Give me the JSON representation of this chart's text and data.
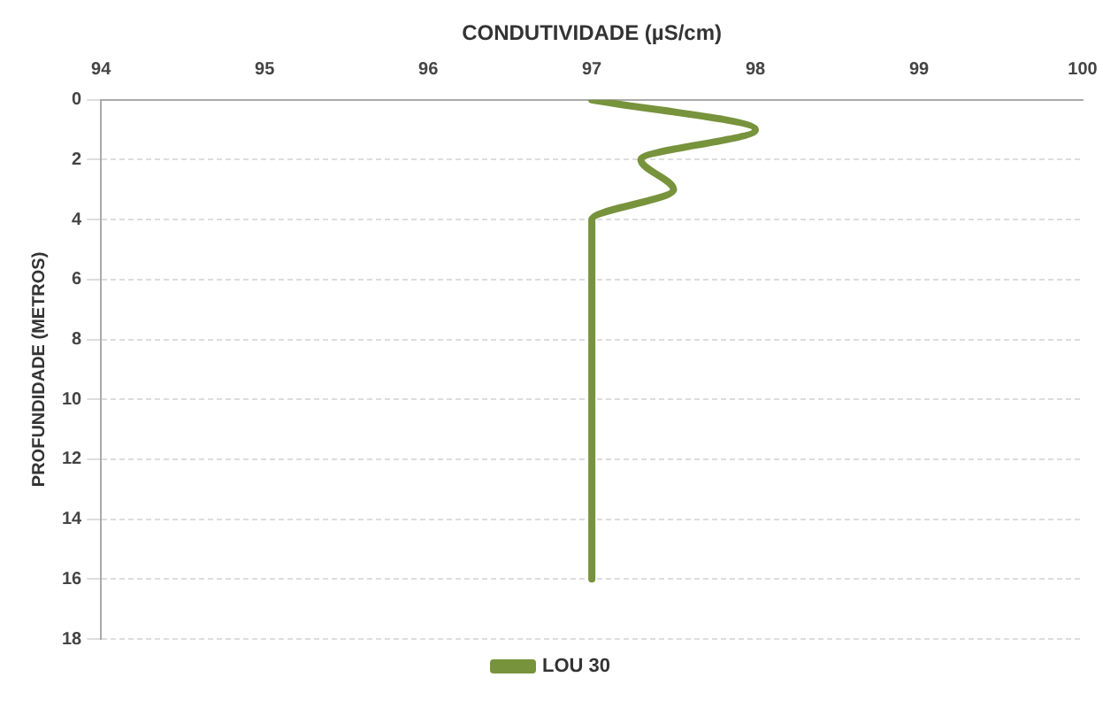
{
  "chart_data": {
    "type": "line",
    "orientation": "horizontal",
    "xlabel": "CONDUTIVIDADE (µS/cm)",
    "ylabel": "PROFUNDIDADE (METROS)",
    "x": [
      0,
      1,
      2,
      3,
      4,
      5,
      16
    ],
    "series": [
      {
        "name": "LOU 30",
        "color": "#77933c",
        "values": [
          97,
          98,
          97.3,
          97.5,
          97,
          97,
          97
        ]
      }
    ],
    "xlim": [
      94,
      100
    ],
    "xticks": [
      94,
      95,
      96,
      97,
      98,
      99,
      100
    ],
    "ylim": [
      18,
      0
    ],
    "yticks": [
      0,
      2,
      4,
      6,
      8,
      10,
      12,
      14,
      16,
      18
    ],
    "grid": "y",
    "legend": "bottom",
    "marker": "none",
    "line_style": "solid"
  }
}
